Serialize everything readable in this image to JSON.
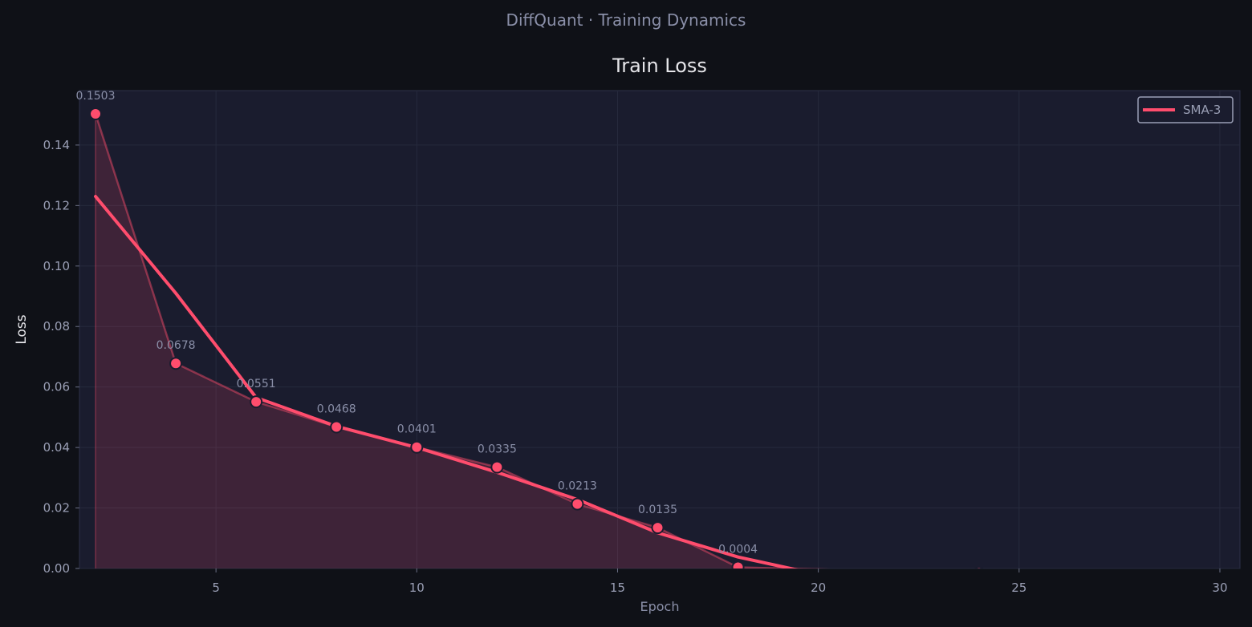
{
  "suptitle": "DiffQuant  ·  Training Dynamics",
  "colors": {
    "background": "#0f1117",
    "plot_background": "#1a1c2e",
    "accent": "#ff4d6d",
    "grid": "#262a3d",
    "text_muted": "#8a8fa8"
  },
  "chart_data": {
    "type": "line",
    "title": "Train Loss",
    "xlabel": "Epoch",
    "ylabel": "Loss",
    "xlim": [
      1.6,
      30.5
    ],
    "ylim": [
      0,
      0.158
    ],
    "xticks": [
      5,
      10,
      15,
      20,
      25,
      30
    ],
    "yticks": [
      0.0,
      0.02,
      0.04,
      0.06,
      0.08,
      0.1,
      0.12,
      0.14
    ],
    "ytick_labels": [
      "0.00",
      "0.02",
      "0.04",
      "0.06",
      "0.08",
      "0.10",
      "0.12",
      "0.14"
    ],
    "grid": true,
    "legend": {
      "position": "top-right",
      "entries": [
        "SMA-3"
      ]
    },
    "series": [
      {
        "role": "raw",
        "x": [
          2,
          4,
          6,
          8,
          10,
          12,
          14,
          16,
          18,
          24
        ],
        "y": [
          0.1503,
          0.0678,
          0.0551,
          0.0468,
          0.0401,
          0.0335,
          0.0213,
          0.0135,
          0.0004,
          -0.0015
        ],
        "labels": [
          "0.1503",
          "0.0678",
          "0.0551",
          "0.0468",
          "0.0401",
          "0.0335",
          "0.0213",
          "0.0135",
          "0.0004",
          ""
        ]
      },
      {
        "role": "smoothed",
        "name": "SMA-3",
        "x": [
          2,
          4,
          6,
          8,
          10,
          12,
          14,
          16,
          18,
          20
        ],
        "y": [
          0.123,
          0.091,
          0.0565,
          0.047,
          0.04,
          0.0318,
          0.0228,
          0.0118,
          0.0038,
          -0.002
        ]
      }
    ]
  }
}
